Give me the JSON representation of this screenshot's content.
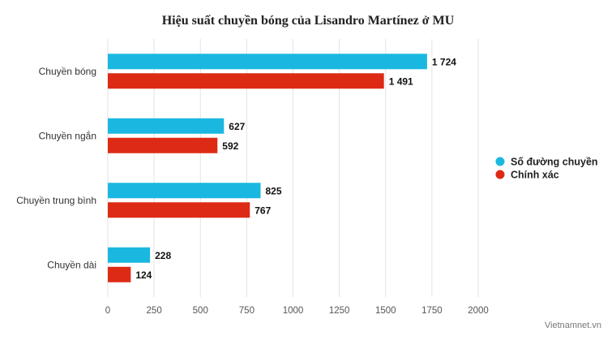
{
  "chart_data": {
    "type": "bar",
    "orientation": "horizontal",
    "title": "Hiệu suất chuyền bóng của Lisandro Martínez ở MU",
    "categories": [
      "Chuyền bóng",
      "Chuyền ngắn",
      "Chuyền trung bình",
      "Chuyền dài"
    ],
    "series": [
      {
        "name": "Số đường chuyền",
        "color": "#1ab8e0",
        "values": [
          1724,
          627,
          825,
          228
        ],
        "labels": [
          "1 724",
          "627",
          "825",
          "228"
        ]
      },
      {
        "name": "Chính xác",
        "color": "#dd2a15",
        "values": [
          1491,
          592,
          767,
          124
        ],
        "labels": [
          "1 491",
          "592",
          "767",
          "124"
        ]
      }
    ],
    "xlim": [
      0,
      2000
    ],
    "xticks": [
      0,
      250,
      500,
      750,
      1000,
      1250,
      1500,
      1750,
      2000
    ],
    "grid": true,
    "legend_position": "right",
    "xlabel": "",
    "ylabel": ""
  },
  "source": "Vietnamnet.vn"
}
